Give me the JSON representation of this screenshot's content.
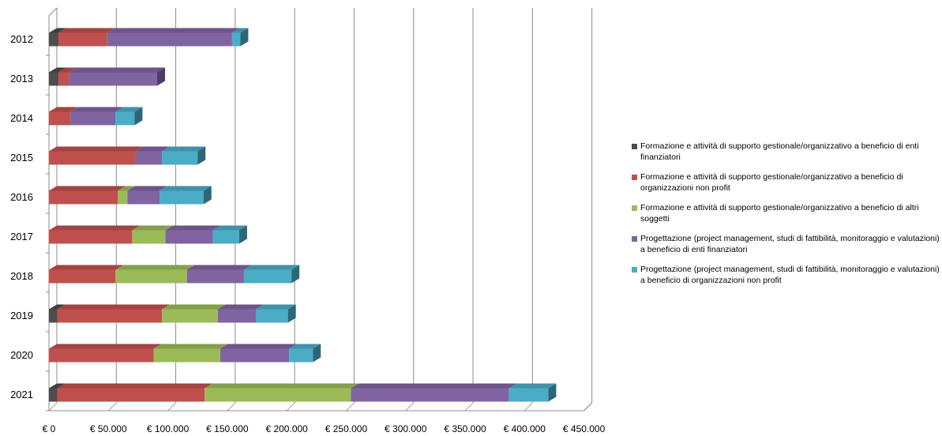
{
  "chart_data": {
    "type": "bar",
    "orientation": "horizontal",
    "stacked": true,
    "three_d": true,
    "categories": [
      "2012",
      "2013",
      "2014",
      "2015",
      "2016",
      "2017",
      "2018",
      "2019",
      "2020",
      "2021"
    ],
    "series": [
      {
        "name": "Formazione e attività di supporto gestionale/organizzativo a beneficio di enti finanziatori",
        "color": "#4d4d4d",
        "values": [
          8000,
          8000,
          0,
          0,
          0,
          0,
          0,
          7000,
          0,
          7000
        ]
      },
      {
        "name": "Formazione e attività di supporto gestionale/organizzativo a beneficio di organizzazioni non profit",
        "color": "#c0504d",
        "values": [
          41000,
          9000,
          18000,
          73000,
          58000,
          70000,
          56000,
          88000,
          88000,
          124000
        ]
      },
      {
        "name": "Formazione e attività di supporto gestionale/organizzativo a beneficio di altri soggetti",
        "color": "#9bbb59",
        "values": [
          0,
          0,
          0,
          0,
          8000,
          28000,
          60000,
          47000,
          56000,
          123000
        ]
      },
      {
        "name": "Progettazione (project management, studi di fattibilità, monitoraggio e valutazioni) a beneficio di enti finanziatori",
        "color": "#8064a2",
        "values": [
          105000,
          74000,
          38000,
          22000,
          27000,
          40000,
          48000,
          32000,
          58000,
          133000
        ]
      },
      {
        "name": "Progettazione (project management, studi di fattibilità, monitoraggio e valutazioni) a beneficio di organizzazioni non profit",
        "color": "#4bacc6",
        "values": [
          7000,
          0,
          16000,
          30000,
          37000,
          22000,
          40000,
          27000,
          20000,
          33000
        ]
      }
    ],
    "x_ticks": [
      "€ 0",
      "€ 50.000",
      "€ 100.000",
      "€ 150.000",
      "€ 200.000",
      "€ 250.000",
      "€ 300.000",
      "€ 350.000",
      "€ 400.000",
      "€ 450.000"
    ],
    "xlim": [
      0,
      450000
    ],
    "grid": true,
    "legend_position": "right"
  }
}
